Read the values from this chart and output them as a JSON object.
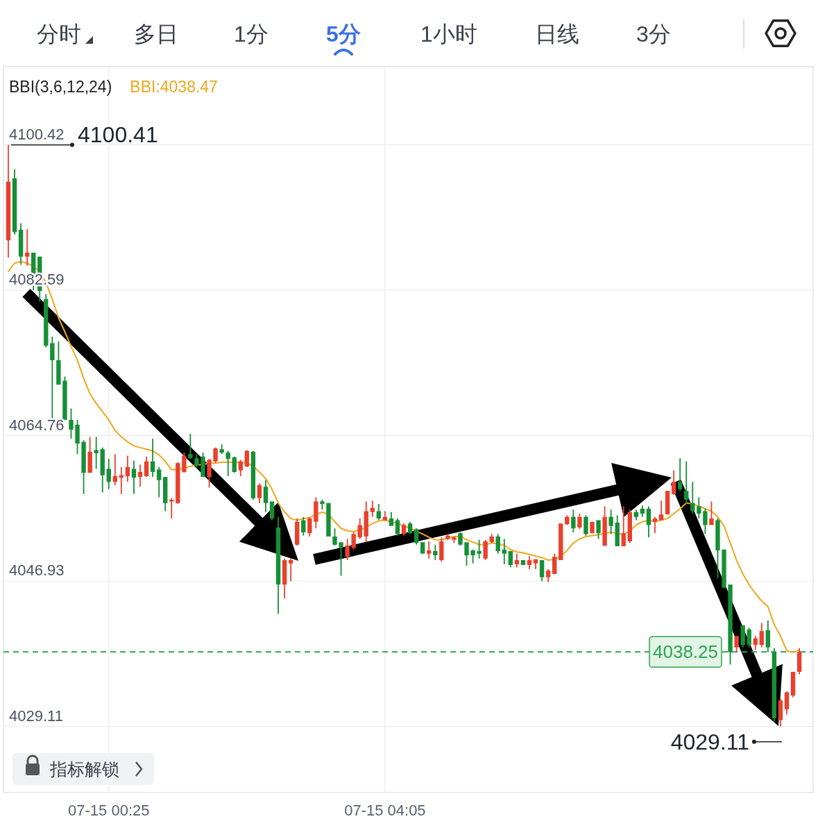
{
  "chart_data": {
    "type": "candlestick",
    "legend_title": "BBI(3,6,12,24)",
    "annotations": [
      "分时",
      "多日",
      "1分",
      "5分",
      "1小时",
      "日线",
      "3分",
      "指标解锁",
      "4100.41",
      "4029.11"
    ],
    "categories": [
      null,
      null,
      null,
      null,
      null,
      null,
      null,
      null,
      null,
      null,
      null,
      null,
      null,
      null,
      null,
      null,
      "07-15 00:25",
      null,
      null,
      null,
      null,
      null,
      null,
      null,
      null,
      null,
      null,
      null,
      null,
      null,
      null,
      null,
      null,
      null,
      null,
      null,
      null,
      null,
      null,
      null,
      null,
      null,
      null,
      null,
      null,
      null,
      null,
      null,
      null,
      null,
      null,
      null,
      null,
      null,
      null,
      null,
      null,
      null,
      null,
      null,
      "07-15 04:05",
      null,
      null,
      null,
      null,
      null,
      null,
      null,
      null,
      null,
      null,
      null,
      null,
      null,
      null,
      null,
      null,
      null,
      null,
      null,
      null,
      null,
      null,
      null,
      null,
      null,
      null,
      null,
      null,
      null,
      null,
      null,
      null,
      null,
      null,
      null,
      null,
      null,
      null,
      null,
      null,
      null,
      null,
      null,
      null,
      null,
      null,
      null,
      null,
      null,
      null,
      null,
      null,
      null,
      null,
      null,
      null,
      null,
      null,
      null,
      null,
      null,
      null,
      null,
      null,
      null,
      null
    ],
    "ylim": [
      4021.0,
      4110.0
    ],
    "yticks": [
      4029.11,
      4046.93,
      4064.76,
      4082.59,
      4100.42
    ],
    "grid": true,
    "legend": "top left",
    "ref_lines": [
      {
        "axis": "y",
        "value": 4038.25,
        "label": "4038.25",
        "color": "#2ea44f",
        "line_style": "dashed"
      }
    ],
    "series": [
      {
        "type": "candlestick",
        "ohlc": [
          [
            4088.7,
            4100.41,
            4086.6,
            4095.9
          ],
          [
            4096.3,
            4097.4,
            4089.4,
            4089.7
          ],
          [
            4090.0,
            4090.8,
            4085.7,
            4086.7
          ],
          [
            4086.7,
            4090.1,
            4085.6,
            4087.2
          ],
          [
            4087.2,
            4087.2,
            4082.6,
            4084.6
          ],
          [
            4086.7,
            4086.7,
            4081.2,
            4082.5
          ],
          [
            4081.5,
            4082.1,
            4075.6,
            4075.8
          ],
          [
            4076.1,
            4076.9,
            4066.7,
            4074.0
          ],
          [
            4074.0,
            4076.3,
            4071.0,
            4071.0
          ],
          [
            4071.5,
            4072.0,
            4066.7,
            4066.7
          ],
          [
            4066.7,
            4068.1,
            4064.4,
            4065.5
          ],
          [
            4066.1,
            4066.7,
            4062.5,
            4063.8
          ],
          [
            4064.0,
            4064.2,
            4057.6,
            4060.2
          ],
          [
            4060.2,
            4064.6,
            4060.2,
            4062.8
          ],
          [
            4063.0,
            4064.6,
            4060.7,
            4062.6
          ],
          [
            4063.1,
            4063.3,
            4057.8,
            4059.9
          ],
          [
            4060.7,
            4061.9,
            4058.2,
            4059.1
          ],
          [
            4059.1,
            4062.5,
            4058.7,
            4059.8
          ],
          [
            4059.6,
            4060.9,
            4057.6,
            4059.9
          ],
          [
            4059.8,
            4062.3,
            4059.1,
            4060.9
          ],
          [
            4060.7,
            4061.7,
            4057.6,
            4059.6
          ],
          [
            4059.7,
            4061.2,
            4058.5,
            4060.3
          ],
          [
            4059.8,
            4062.2,
            4059.7,
            4061.6
          ],
          [
            4061.6,
            4064.4,
            4059.7,
            4060.3
          ],
          [
            4060.6,
            4060.9,
            4057.2,
            4059.3
          ],
          [
            4059.7,
            4059.7,
            4055.5,
            4056.5
          ],
          [
            4056.7,
            4057.1,
            4054.6,
            4056.9
          ],
          [
            4056.5,
            4061.5,
            4056.4,
            4061.4
          ],
          [
            4060.3,
            4062.7,
            4060.2,
            4062.3
          ],
          [
            4062.5,
            4065.0,
            4061.9,
            4062.0
          ],
          [
            4062.0,
            4062.5,
            4060.8,
            4061.1
          ],
          [
            4062.2,
            4062.7,
            4059.7,
            4059.7
          ],
          [
            4059.7,
            4061.9,
            4058.4,
            4061.8
          ],
          [
            4061.6,
            4063.3,
            4061.4,
            4063.2
          ],
          [
            4063.1,
            4063.7,
            4062.5,
            4062.7
          ],
          [
            4062.7,
            4062.9,
            4059.8,
            4061.9
          ],
          [
            4062.1,
            4062.2,
            4060.2,
            4060.3
          ],
          [
            4060.5,
            4061.8,
            4059.8,
            4061.6
          ],
          [
            4061.0,
            4063.0,
            4060.9,
            4062.9
          ],
          [
            4062.8,
            4062.9,
            4056.9,
            4057.1
          ],
          [
            4057.1,
            4058.9,
            4056.5,
            4058.7
          ],
          [
            4058.5,
            4059.3,
            4055.4,
            4056.5
          ],
          [
            4056.7,
            4056.7,
            4054.4,
            4054.6
          ],
          [
            4053.5,
            4054.8,
            4042.9,
            4046.5
          ],
          [
            4046.5,
            4049.7,
            4044.8,
            4049.5
          ],
          [
            4049.1,
            4049.7,
            4046.9,
            4049.5
          ],
          [
            4051.4,
            4054.6,
            4051.3,
            4054.2
          ],
          [
            4054.4,
            4054.8,
            4052.5,
            4052.9
          ],
          [
            4052.8,
            4054.8,
            4052.4,
            4054.6
          ],
          [
            4054.2,
            4057.2,
            4053.4,
            4056.7
          ],
          [
            4056.7,
            4056.9,
            4055.7,
            4056.4
          ],
          [
            4056.5,
            4056.5,
            4052.4,
            4052.4
          ],
          [
            4052.4,
            4053.4,
            4051.3,
            4051.4
          ],
          [
            4051.7,
            4051.7,
            4047.6,
            4051.0
          ],
          [
            4049.9,
            4052.1,
            4049.5,
            4051.3
          ],
          [
            4051.0,
            4052.9,
            4050.8,
            4052.7
          ],
          [
            4052.3,
            4054.6,
            4052.1,
            4053.8
          ],
          [
            4052.4,
            4056.7,
            4051.7,
            4055.5
          ],
          [
            4055.4,
            4056.8,
            4054.8,
            4055.9
          ],
          [
            4055.5,
            4056.4,
            4054.4,
            4054.6
          ],
          [
            4054.4,
            4055.5,
            4054.4,
            4054.8
          ],
          [
            4054.6,
            4055.4,
            4053.7,
            4053.7
          ],
          [
            4054.4,
            4054.6,
            4052.5,
            4052.7
          ],
          [
            4052.7,
            4054.0,
            4052.5,
            4053.8
          ],
          [
            4054.0,
            4054.2,
            4052.7,
            4052.8
          ],
          [
            4053.3,
            4053.4,
            4051.4,
            4051.6
          ],
          [
            4051.7,
            4051.7,
            4050.3,
            4050.3
          ],
          [
            4050.3,
            4051.8,
            4049.7,
            4050.7
          ],
          [
            4050.6,
            4051.4,
            4049.5,
            4050.1
          ],
          [
            4049.5,
            4052.3,
            4049.3,
            4051.8
          ],
          [
            4052.1,
            4052.7,
            4052.0,
            4052.5
          ],
          [
            4052.0,
            4052.4,
            4051.6,
            4052.3
          ],
          [
            4052.8,
            4052.9,
            4051.3,
            4051.4
          ],
          [
            4051.7,
            4051.7,
            4048.8,
            4050.1
          ],
          [
            4050.7,
            4050.8,
            4049.1,
            4050.1
          ],
          [
            4050.6,
            4052.0,
            4049.7,
            4050.3
          ],
          [
            4049.7,
            4052.0,
            4049.5,
            4051.8
          ],
          [
            4051.7,
            4052.7,
            4051.6,
            4052.4
          ],
          [
            4052.4,
            4052.7,
            4050.3,
            4050.6
          ],
          [
            4050.8,
            4052.1,
            4049.0,
            4050.3
          ],
          [
            4050.6,
            4050.6,
            4048.6,
            4048.9
          ],
          [
            4049.0,
            4050.3,
            4048.6,
            4049.5
          ],
          [
            4049.5,
            4049.5,
            4048.9,
            4048.9
          ],
          [
            4048.9,
            4050.0,
            4048.4,
            4049.5
          ],
          [
            4049.1,
            4049.6,
            4048.4,
            4049.6
          ],
          [
            4049.5,
            4049.5,
            4046.9,
            4047.4
          ],
          [
            4047.4,
            4048.4,
            4046.8,
            4048.2
          ],
          [
            4047.8,
            4050.3,
            4047.8,
            4049.9
          ],
          [
            4049.5,
            4054.0,
            4049.5,
            4054.0
          ],
          [
            4053.9,
            4055.0,
            4053.8,
            4054.8
          ],
          [
            4054.8,
            4055.7,
            4052.9,
            4053.4
          ],
          [
            4053.5,
            4055.2,
            4053.3,
            4054.8
          ],
          [
            4054.8,
            4055.0,
            4052.5,
            4052.7
          ],
          [
            4052.8,
            4054.2,
            4052.8,
            4054.2
          ],
          [
            4054.4,
            4054.4,
            4052.1,
            4052.8
          ],
          [
            4051.3,
            4056.1,
            4051.2,
            4054.8
          ],
          [
            4054.8,
            4055.7,
            4052.7,
            4053.7
          ],
          [
            4054.1,
            4055.0,
            4051.2,
            4051.2
          ],
          [
            4051.2,
            4056.1,
            4051.2,
            4052.8
          ],
          [
            4051.8,
            4055.7,
            4051.6,
            4055.4
          ],
          [
            4055.4,
            4055.7,
            4054.4,
            4054.8
          ],
          [
            4055.8,
            4056.2,
            4054.8,
            4055.2
          ],
          [
            4055.8,
            4056.1,
            4052.3,
            4053.8
          ],
          [
            4054.2,
            4054.8,
            4052.8,
            4054.6
          ],
          [
            4054.4,
            4056.8,
            4054.4,
            4055.1
          ],
          [
            4055.1,
            4058.0,
            4055.1,
            4058.0
          ],
          [
            4057.6,
            4060.5,
            4057.5,
            4059.1
          ],
          [
            4059.1,
            4062.0,
            4058.0,
            4058.2
          ],
          [
            4058.0,
            4061.6,
            4056.4,
            4056.9
          ],
          [
            4056.5,
            4059.1,
            4055.2,
            4055.5
          ],
          [
            4056.1,
            4057.2,
            4054.6,
            4055.2
          ],
          [
            4055.5,
            4055.8,
            4052.7,
            4053.8
          ],
          [
            4053.8,
            4056.7,
            4053.8,
            4054.6
          ],
          [
            4054.4,
            4054.6,
            4047.3,
            4050.7
          ],
          [
            4050.8,
            4050.8,
            4046.1,
            4046.1
          ],
          [
            4046.5,
            4046.5,
            4036.7,
            4038.2
          ],
          [
            4038.8,
            4040.2,
            4038.2,
            4040.2
          ],
          [
            4041.5,
            4041.5,
            4038.8,
            4039.1
          ],
          [
            4041.0,
            4041.2,
            4038.8,
            4039.1
          ],
          [
            4039.1,
            4040.2,
            4038.5,
            4039.9
          ],
          [
            4039.1,
            4041.8,
            4038.8,
            4040.8
          ],
          [
            4040.9,
            4042.1,
            4038.2,
            4038.8
          ],
          [
            4038.2,
            4038.7,
            4029.7,
            4030.1
          ],
          [
            4029.9,
            4032.5,
            4029.11,
            4032.3
          ],
          [
            4031.2,
            4033.4,
            4030.6,
            4033.3
          ],
          [
            4032.9,
            4035.8,
            4032.7,
            4035.8
          ],
          [
            4035.8,
            4038.7,
            4035.5,
            4038.25
          ]
        ],
        "colors": [
          "#e8412e",
          "#178f36",
          "#178f36",
          "#e8412e",
          "#178f36",
          "#178f36",
          "#178f36",
          "#178f36",
          "#178f36",
          "#178f36",
          "#178f36",
          "#178f36",
          "#178f36",
          "#e8412e",
          "#178f36",
          "#178f36",
          "#178f36",
          "#e8412e",
          "#e8412e",
          "#e8412e",
          "#178f36",
          "#e8412e",
          "#e8412e",
          "#178f36",
          "#178f36",
          "#178f36",
          "#e8412e",
          "#e8412e",
          "#e8412e",
          "#178f36",
          "#178f36",
          "#178f36",
          "#e8412e",
          "#e8412e",
          "#178f36",
          "#178f36",
          "#178f36",
          "#e8412e",
          "#e8412e",
          "#178f36",
          "#e8412e",
          "#178f36",
          "#178f36",
          "#178f36",
          "#e8412e",
          "#e8412e",
          "#e8412e",
          "#178f36",
          "#e8412e",
          "#e8412e",
          "#178f36",
          "#178f36",
          "#178f36",
          "#178f36",
          "#e8412e",
          "#e8412e",
          "#e8412e",
          "#e8412e",
          "#e8412e",
          "#178f36",
          "#e8412e",
          "#178f36",
          "#178f36",
          "#e8412e",
          "#178f36",
          "#178f36",
          "#178f36",
          "#e8412e",
          "#178f36",
          "#e8412e",
          "#e8412e",
          "#e8412e",
          "#178f36",
          "#178f36",
          "#178f36",
          "#178f36",
          "#e8412e",
          "#e8412e",
          "#178f36",
          "#178f36",
          "#178f36",
          "#e8412e",
          "#178f36",
          "#e8412e",
          "#e8412e",
          "#178f36",
          "#e8412e",
          "#e8412e",
          "#e8412e",
          "#e8412e",
          "#178f36",
          "#e8412e",
          "#178f36",
          "#e8412e",
          "#178f36",
          "#e8412e",
          "#178f36",
          "#178f36",
          "#e8412e",
          "#e8412e",
          "#178f36",
          "#178f36",
          "#178f36",
          "#e8412e",
          "#e8412e",
          "#e8412e",
          "#e8412e",
          "#178f36",
          "#178f36",
          "#178f36",
          "#178f36",
          "#178f36",
          "#e8412e",
          "#178f36",
          "#178f36",
          "#178f36",
          "#e8412e",
          "#178f36",
          "#178f36",
          "#e8412e",
          "#e8412e",
          "#178f36",
          "#178f36",
          "#e8412e",
          "#e8412e",
          "#e8412e",
          "#e8412e"
        ]
      },
      {
        "type": "line",
        "name": "BBI:4038.47",
        "color": "#f0a71c",
        "values": [
          4084.9,
          4085.9,
          4086.1,
          4085.9,
          4085.5,
          4084.9,
          4083.5,
          4081.5,
          4079.2,
          4077.5,
          4075.7,
          4074.0,
          4071.8,
          4069.9,
          4068.7,
          4067.7,
          4066.7,
          4065.4,
          4064.6,
          4064.0,
          4063.5,
          4063.3,
          4063.1,
          4062.9,
          4062.4,
          4061.6,
          4060.6,
          4060.6,
          4060.8,
          4061.0,
          4061.2,
          4061.2,
          4061.4,
          4061.4,
          4061.5,
          4061.5,
          4061.5,
          4061.5,
          4061.4,
          4061.0,
          4060.3,
          4059.5,
          4058.2,
          4056.5,
          4055.4,
          4054.6,
          4054.4,
          4054.6,
          4054.7,
          4055.1,
          4055.4,
          4055.1,
          4054.2,
          4053.4,
          4053.1,
          4053.0,
          4053.2,
          4053.5,
          4054.0,
          4054.3,
          4054.4,
          4054.2,
          4054.0,
          4053.7,
          4053.4,
          4053.0,
          4052.7,
          4052.3,
          4052.0,
          4052.0,
          4052.2,
          4052.4,
          4052.4,
          4052.0,
          4051.7,
          4051.4,
          4051.4,
          4051.6,
          4051.5,
          4051.3,
          4050.8,
          4050.5,
          4050.4,
          4050.2,
          4050.0,
          4049.8,
          4049.5,
          4049.6,
          4050.0,
          4050.7,
          4051.6,
          4052.1,
          4052.4,
          4052.5,
          4052.6,
          4052.8,
          4052.9,
          4052.8,
          4052.6,
          4053.1,
          4053.8,
          4054.2,
          4054.4,
          4054.2,
          4054.4,
          4054.6,
          4055.2,
          4055.8,
          4056.5,
          4056.4,
          4056.1,
          4055.8,
          4055.5,
          4054.8,
          4053.7,
          4051.6,
          4049.5,
          4047.8,
          4046.5,
          4045.4,
          4044.5,
          4043.8,
          4041.6,
          4040.2,
          4038.4,
          4038.2,
          4038.5
        ]
      }
    ]
  }
}
